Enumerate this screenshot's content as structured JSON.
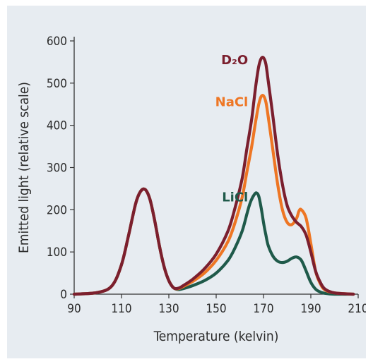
{
  "chart_data": {
    "type": "line",
    "xlabel": "Temperature (kelvin)",
    "ylabel": "Emitted light (relative scale)",
    "xlim": [
      90,
      210
    ],
    "ylim": [
      0,
      600
    ],
    "x_ticks": [
      "90",
      "110",
      "130",
      "150",
      "170",
      "190",
      "210"
    ],
    "y_ticks": [
      "0",
      "100",
      "200",
      "300",
      "400",
      "500",
      "600"
    ],
    "grid": false,
    "legend": "inline labels near curves",
    "series": [
      {
        "name": "D₂O",
        "color": "#7b1f2e",
        "x": [
          90,
          100,
          106,
          110,
          113,
          116,
          118,
          120,
          122,
          124,
          126,
          128,
          130,
          132,
          134,
          136,
          140,
          145,
          150,
          155,
          158,
          161,
          163,
          165,
          166,
          167,
          168,
          169,
          170,
          171,
          172,
          174,
          176,
          178,
          180,
          182,
          184,
          186,
          188,
          190,
          192,
          194,
          196,
          200,
          208
        ],
        "y": [
          0,
          4,
          20,
          70,
          140,
          215,
          243,
          248,
          225,
          175,
          115,
          65,
          32,
          15,
          14,
          20,
          35,
          60,
          95,
          150,
          205,
          275,
          345,
          415,
          460,
          505,
          540,
          558,
          560,
          545,
          505,
          420,
          330,
          260,
          210,
          185,
          170,
          160,
          140,
          100,
          55,
          28,
          12,
          3,
          0
        ]
      },
      {
        "name": "NaCl",
        "color": "#ee7624",
        "x": [
          90,
          100,
          106,
          110,
          113,
          116,
          118,
          120,
          122,
          124,
          126,
          128,
          130,
          132,
          134,
          136,
          140,
          145,
          150,
          155,
          158,
          161,
          163,
          165,
          166,
          167,
          168,
          169,
          170,
          171,
          172,
          174,
          176,
          178,
          180,
          182,
          184,
          185,
          186,
          188,
          190,
          192,
          194,
          196,
          200,
          208
        ],
        "y": [
          0,
          4,
          20,
          70,
          140,
          215,
          243,
          248,
          225,
          175,
          115,
          65,
          32,
          15,
          13,
          18,
          30,
          50,
          80,
          125,
          170,
          230,
          290,
          350,
          385,
          420,
          450,
          468,
          470,
          455,
          420,
          340,
          260,
          200,
          170,
          165,
          180,
          197,
          200,
          180,
          120,
          55,
          25,
          10,
          3,
          0
        ]
      },
      {
        "name": "LiCl",
        "color": "#1f5a4a",
        "x": [
          90,
          100,
          106,
          110,
          113,
          116,
          118,
          120,
          122,
          124,
          126,
          128,
          130,
          132,
          134,
          136,
          140,
          145,
          150,
          155,
          158,
          161,
          163,
          164,
          165,
          166,
          167,
          168,
          169,
          170,
          171,
          172,
          174,
          176,
          178,
          180,
          182,
          184,
          186,
          188,
          190,
          192,
          194,
          196,
          200,
          208
        ],
        "y": [
          0,
          4,
          20,
          70,
          140,
          215,
          243,
          248,
          225,
          175,
          115,
          65,
          32,
          15,
          11,
          13,
          20,
          32,
          50,
          80,
          110,
          150,
          190,
          210,
          225,
          235,
          240,
          232,
          205,
          170,
          140,
          115,
          90,
          78,
          75,
          78,
          85,
          88,
          80,
          55,
          28,
          12,
          5,
          2,
          0,
          0
        ]
      }
    ]
  }
}
